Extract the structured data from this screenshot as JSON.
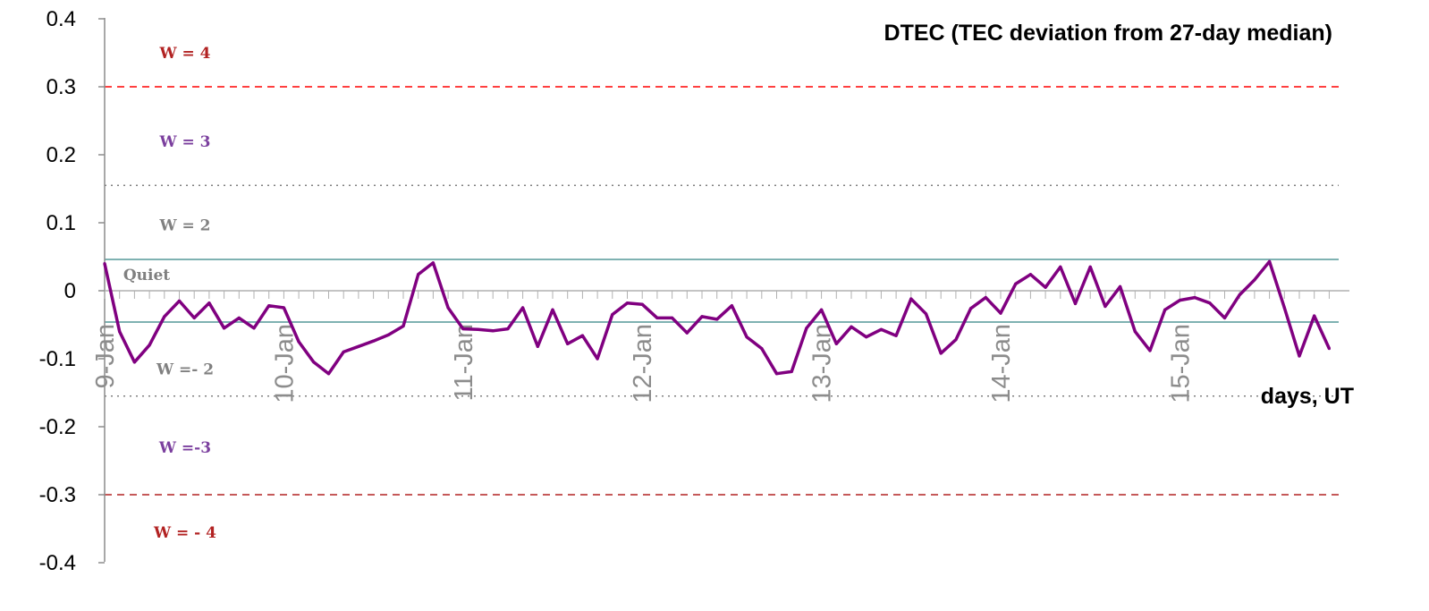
{
  "chart_data": {
    "type": "line",
    "title": "DTEC (TEC deviation from 27-day median)",
    "xlabel": "days, UT",
    "ylabel": "",
    "ylim": [
      -0.4,
      0.4
    ],
    "yticks": [
      "0.4",
      "0.3",
      "0.2",
      "0.1",
      "0",
      "-0.1",
      "-0.2",
      "-0.3",
      "-0.4"
    ],
    "xlim": [
      "9-Jan 00:00",
      "15-Jan 22:00"
    ],
    "x_tick_labels": [
      "9-Jan",
      "10-Jan",
      "11-Jan",
      "12-Jan",
      "13-Jan",
      "14-Jan",
      "15-Jan"
    ],
    "x_step_hours": 2,
    "grid": false,
    "line_color": "#800080",
    "thresholds": [
      {
        "value": 0.3,
        "style": "dashed",
        "color": "#ff0000"
      },
      {
        "value": 0.155,
        "style": "dotted",
        "color": "#808080"
      },
      {
        "value": 0.046,
        "style": "solid",
        "color": "#7fb2b2"
      },
      {
        "value": -0.046,
        "style": "solid",
        "color": "#7fb2b2"
      },
      {
        "value": -0.155,
        "style": "dotted",
        "color": "#808080"
      },
      {
        "value": -0.3,
        "style": "dashed",
        "color": "#b22222"
      }
    ],
    "zone_labels": [
      {
        "text": "W = 4",
        "value": 0.35,
        "color": "#b22222"
      },
      {
        "text": "W = 3",
        "value": 0.22,
        "color": "#7b3f9e"
      },
      {
        "text": "W = 2",
        "value": 0.097,
        "color": "#808080"
      },
      {
        "text": "Quiet",
        "value": 0.024,
        "color": "#808080"
      },
      {
        "text": "W =- 2",
        "value": -0.115,
        "color": "#808080"
      },
      {
        "text": "W =-3",
        "value": -0.23,
        "color": "#7b3f9e"
      },
      {
        "text": "W = - 4",
        "value": -0.355,
        "color": "#b22222"
      }
    ],
    "series": [
      {
        "values": [
          0.04,
          -0.06,
          -0.105,
          -0.08,
          -0.038,
          -0.015,
          -0.04,
          -0.018,
          -0.055,
          -0.04,
          -0.055,
          -0.022,
          -0.025,
          -0.075,
          -0.105,
          -0.122,
          -0.09,
          -0.082,
          -0.074,
          -0.065,
          -0.052,
          0.024,
          0.041,
          -0.025,
          -0.056,
          -0.057,
          -0.059,
          -0.056,
          -0.025,
          -0.082,
          -0.028,
          -0.078,
          -0.066,
          -0.1,
          -0.035,
          -0.018,
          -0.02,
          -0.04,
          -0.04,
          -0.062,
          -0.038,
          -0.042,
          -0.022,
          -0.068,
          -0.085,
          -0.122,
          -0.119,
          -0.055,
          -0.028,
          -0.078,
          -0.053,
          -0.068,
          -0.057,
          -0.066,
          -0.012,
          -0.034,
          -0.092,
          -0.072,
          -0.026,
          -0.01,
          -0.033,
          0.01,
          0.024,
          0.005,
          0.035,
          -0.019,
          0.035,
          -0.023,
          0.006,
          -0.06,
          -0.088,
          -0.028,
          -0.014,
          -0.01,
          -0.018,
          -0.04,
          -0.006,
          0.016,
          0.043,
          -0.025,
          -0.096,
          -0.037,
          -0.085
        ]
      }
    ]
  }
}
